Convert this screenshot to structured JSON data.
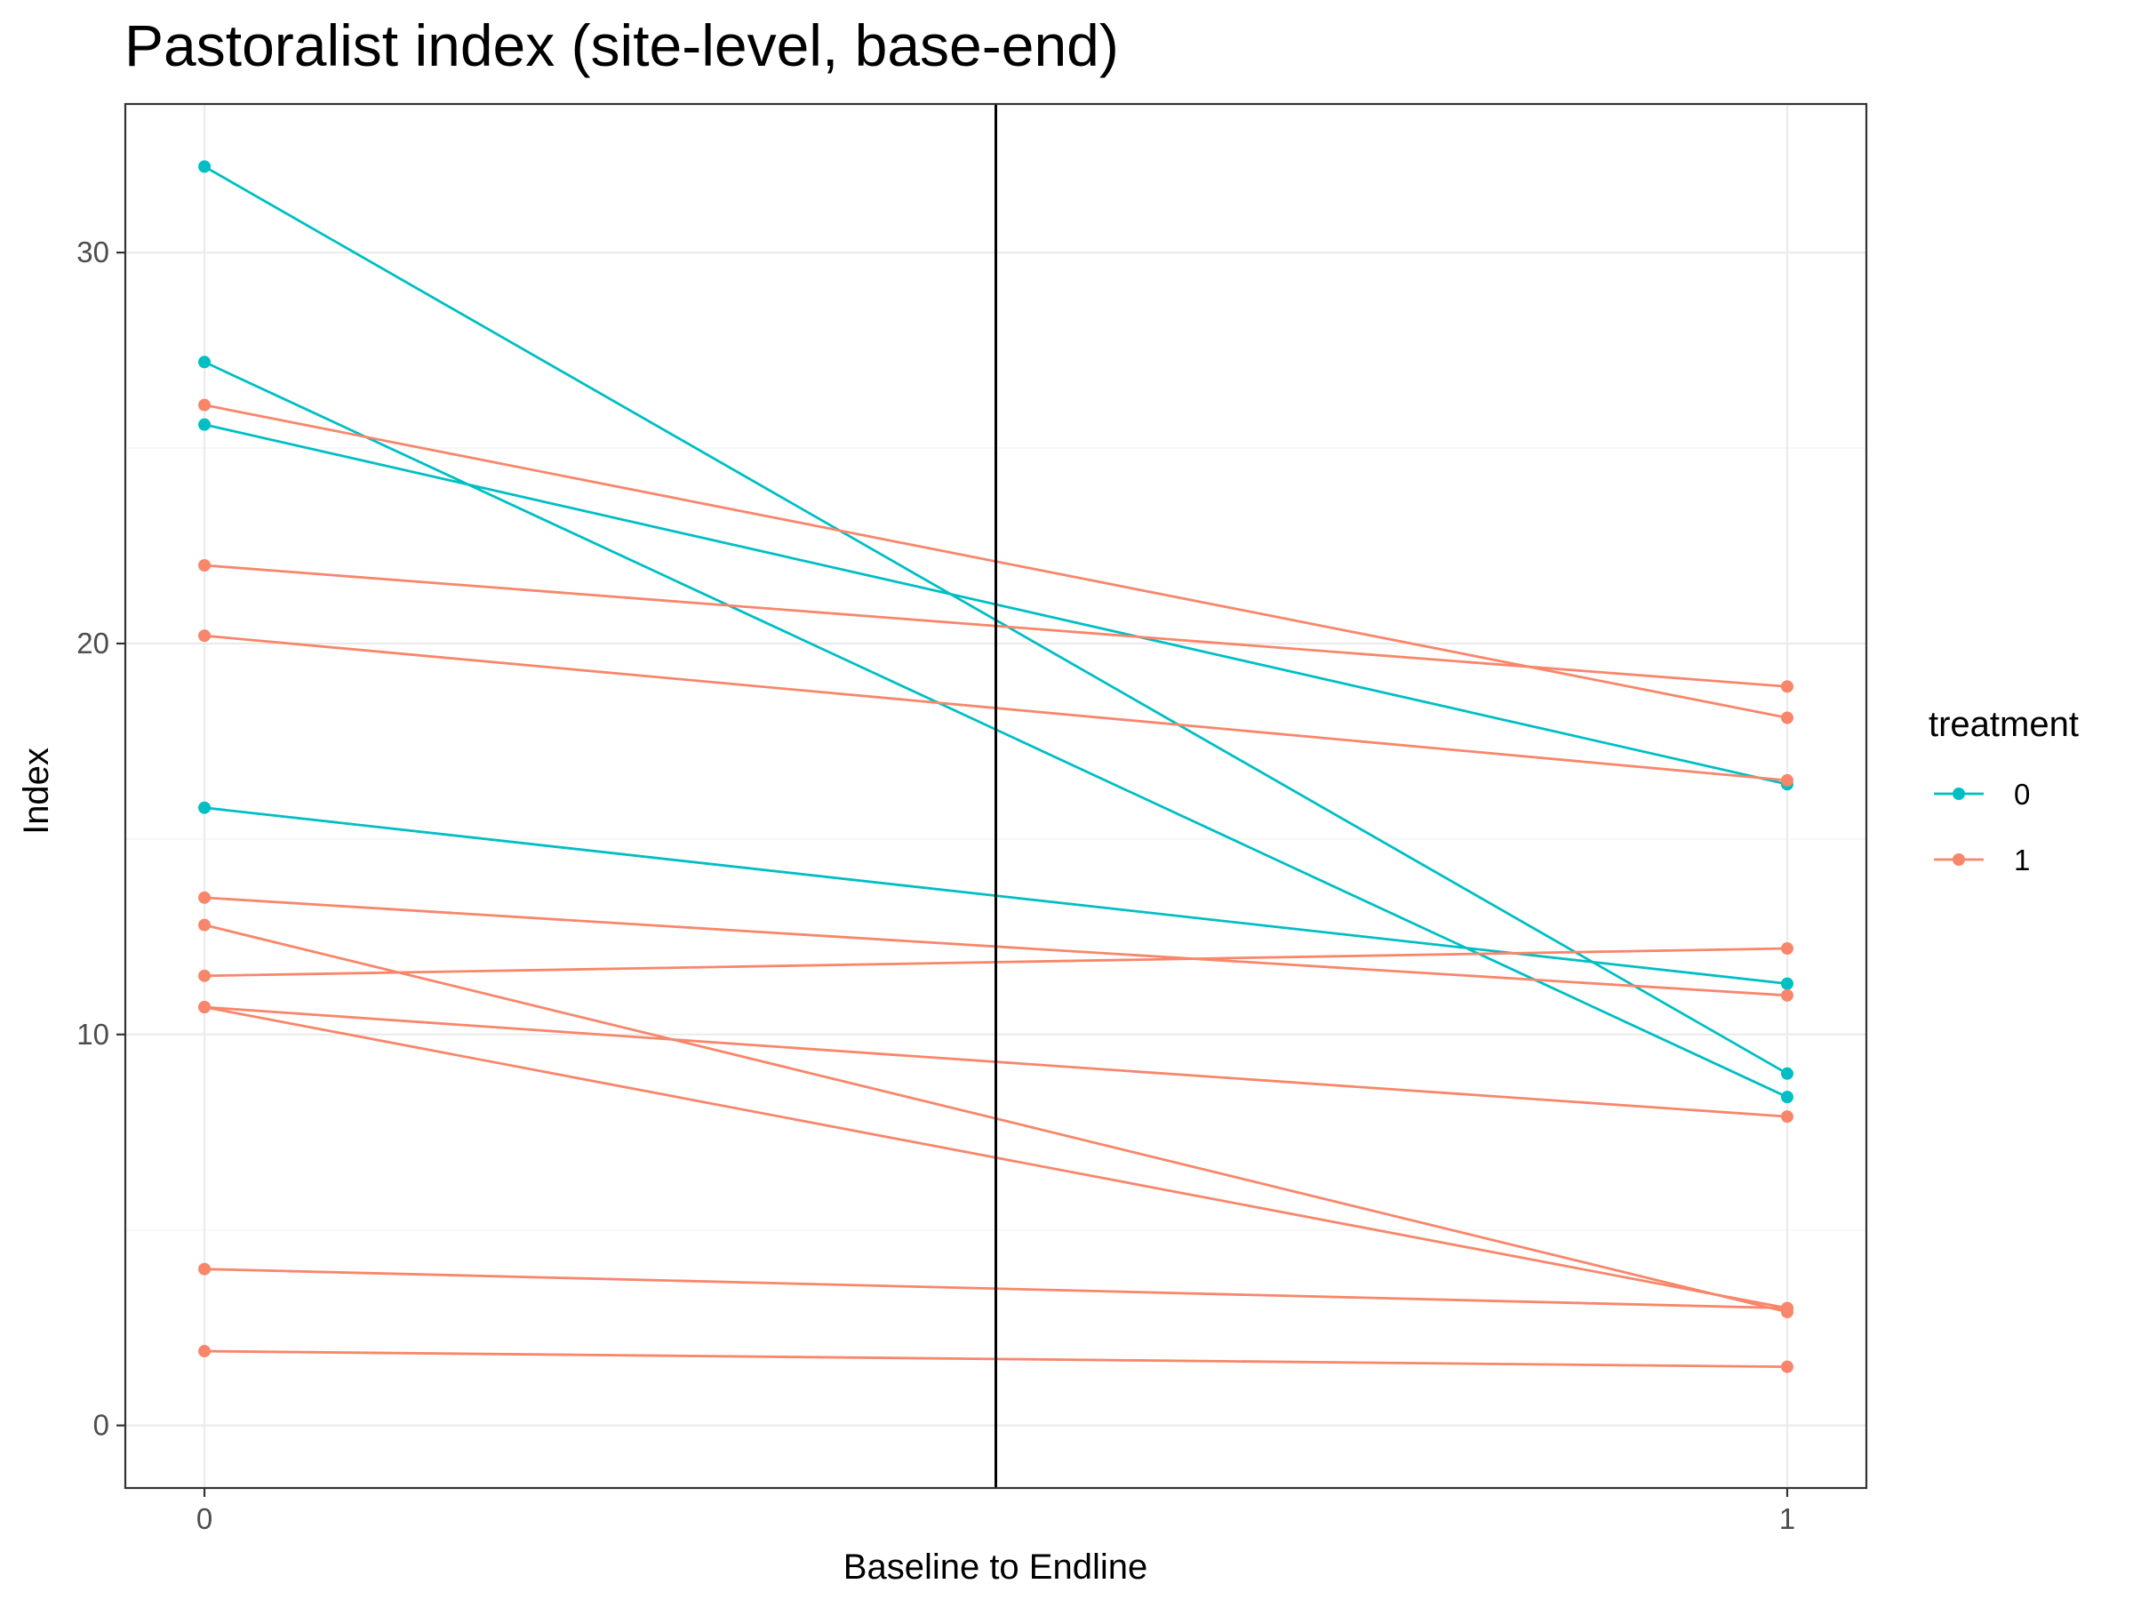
{
  "chart_data": {
    "type": "line",
    "title": "Pastoralist index (site-level, base-end)",
    "xlabel": "Baseline to Endline",
    "ylabel": "Index",
    "x_ticks": [
      "0",
      "1"
    ],
    "y_ticks": [
      "0",
      "10",
      "20",
      "30"
    ],
    "xlim": [
      -0.05,
      1.05
    ],
    "ylim": [
      -1.6,
      33.8
    ],
    "grid": true,
    "vline_x": 0.5,
    "legend": {
      "title": "treatment",
      "position": "right",
      "entries": [
        {
          "label": "0",
          "color": "#00BFC4"
        },
        {
          "label": "1",
          "color": "#F8866B"
        }
      ]
    },
    "groups": [
      {
        "treatment": "0",
        "color": "#00BFC4",
        "pairs": [
          [
            32.2,
            9.0
          ],
          [
            27.2,
            8.4
          ],
          [
            25.6,
            16.4
          ],
          [
            15.8,
            11.3
          ]
        ]
      },
      {
        "treatment": "1",
        "color": "#F8866B",
        "pairs": [
          [
            26.1,
            18.1
          ],
          [
            22.0,
            18.9
          ],
          [
            20.2,
            16.5
          ],
          [
            13.5,
            11.0
          ],
          [
            12.8,
            2.9
          ],
          [
            11.5,
            12.2
          ],
          [
            10.7,
            7.9
          ],
          [
            10.7,
            3.0
          ],
          [
            4.0,
            3.0
          ],
          [
            1.9,
            1.5
          ]
        ]
      }
    ]
  }
}
